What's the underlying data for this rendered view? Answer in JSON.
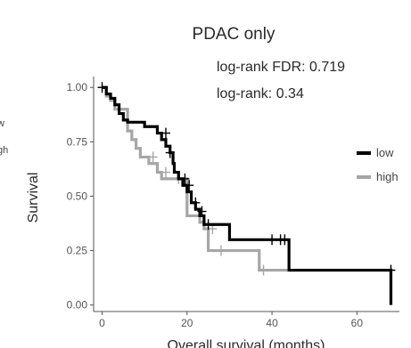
{
  "chart_data": {
    "type": "line",
    "title": "PDAC only",
    "annotations": [
      "log-rank FDR: 0.719",
      "log-rank: 0.34"
    ],
    "xlabel": "Overall survival (months)",
    "ylabel": "Survival",
    "xlim": [
      -2,
      70
    ],
    "ylim": [
      -0.03,
      1.05
    ],
    "xticks": [
      0,
      20,
      40,
      60
    ],
    "yticks": [
      0.0,
      0.25,
      0.5,
      0.75,
      1.0
    ],
    "ytick_labels": [
      "0.00",
      "0.25",
      "0.50",
      "0.75",
      "1.00"
    ],
    "legend": "right",
    "left_fragments": [
      "w",
      "gh"
    ],
    "series": [
      {
        "name": "low",
        "color": "#000000",
        "steps": [
          [
            0,
            1.0
          ],
          [
            1,
            0.97
          ],
          [
            2,
            0.95
          ],
          [
            3,
            0.92
          ],
          [
            4,
            0.88
          ],
          [
            5,
            0.85
          ],
          [
            6,
            0.84
          ],
          [
            10,
            0.82
          ],
          [
            13,
            0.79
          ],
          [
            14,
            0.76
          ],
          [
            15,
            0.73
          ],
          [
            16,
            0.7
          ],
          [
            16.7,
            0.65
          ],
          [
            17,
            0.61
          ],
          [
            18,
            0.58
          ],
          [
            19,
            0.55
          ],
          [
            20,
            0.52
          ],
          [
            21,
            0.47
          ],
          [
            22,
            0.44
          ],
          [
            23,
            0.41
          ],
          [
            24,
            0.37
          ],
          [
            30,
            0.3
          ],
          [
            44,
            0.16
          ],
          [
            68,
            0.0
          ]
        ],
        "censors": [
          [
            0,
            1.0
          ],
          [
            15,
            0.79
          ],
          [
            16,
            0.7
          ],
          [
            19.5,
            0.58
          ],
          [
            20.5,
            0.55
          ],
          [
            22,
            0.47
          ],
          [
            23.5,
            0.43
          ],
          [
            25,
            0.37
          ],
          [
            40,
            0.3
          ],
          [
            42,
            0.3
          ],
          [
            43,
            0.3
          ],
          [
            68,
            0.16
          ]
        ]
      },
      {
        "name": "high",
        "color": "#a6a6a6",
        "steps": [
          [
            0,
            1.0
          ],
          [
            1,
            0.96
          ],
          [
            2,
            0.94
          ],
          [
            3,
            0.9
          ],
          [
            6,
            0.8
          ],
          [
            7,
            0.76
          ],
          [
            8,
            0.72
          ],
          [
            9,
            0.68
          ],
          [
            11,
            0.65
          ],
          [
            13,
            0.61
          ],
          [
            14,
            0.58
          ],
          [
            20,
            0.41
          ],
          [
            23,
            0.38
          ],
          [
            24,
            0.35
          ],
          [
            25,
            0.25
          ],
          [
            37,
            0.16
          ],
          [
            68,
            0.0
          ]
        ],
        "censors": [
          [
            12,
            0.68
          ],
          [
            15,
            0.61
          ],
          [
            18,
            0.58
          ],
          [
            26,
            0.35
          ],
          [
            28,
            0.25
          ],
          [
            38,
            0.16
          ],
          [
            68,
            0.16
          ]
        ]
      }
    ]
  }
}
